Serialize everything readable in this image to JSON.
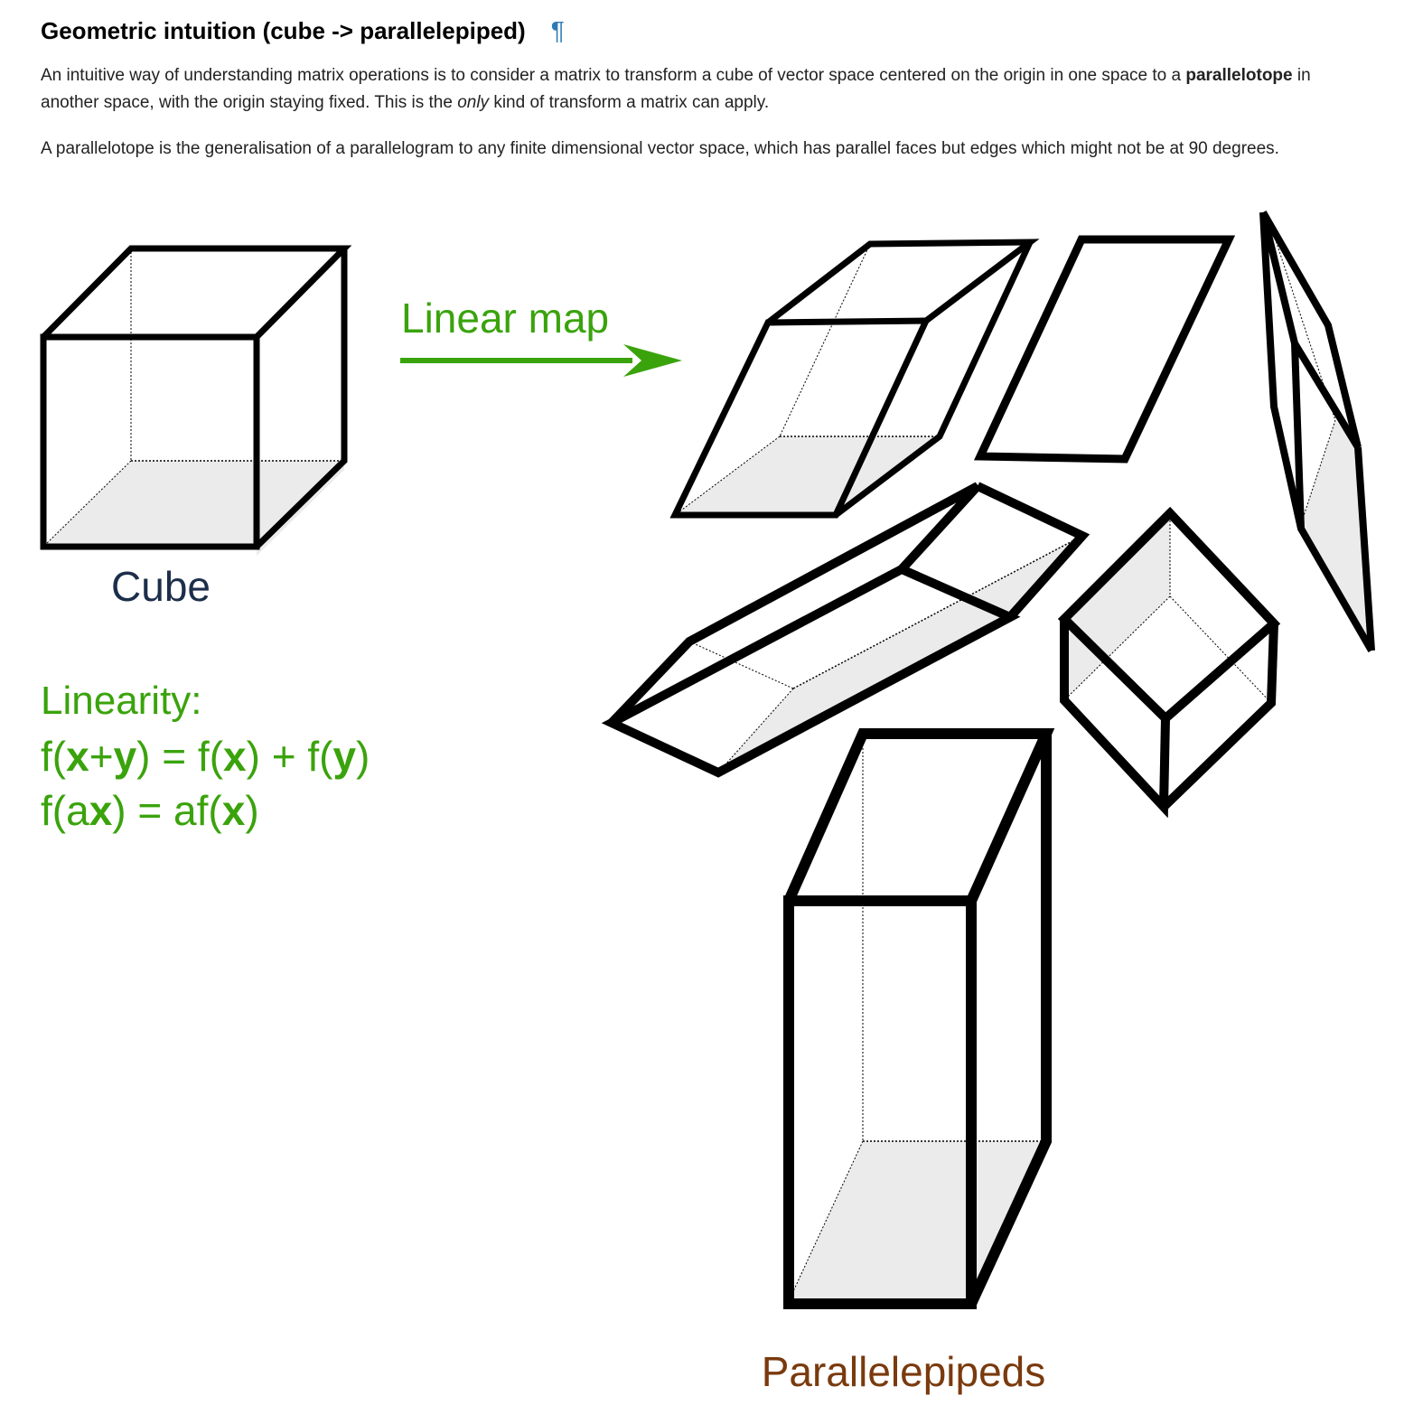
{
  "section": {
    "heading": "Geometric intuition (cube -> parallelepiped)",
    "anchor_symbol": "¶"
  },
  "paragraphs": [
    {
      "parts": [
        {
          "text": "An intuitive way of understanding matrix operations is to consider a matrix to transform a cube of vector space centered on the origin in one space to a ",
          "style": "normal"
        },
        {
          "text": "parallelotope",
          "style": "bold"
        },
        {
          "text": " in another space, with the origin staying fixed. This is the ",
          "style": "normal"
        },
        {
          "text": "only",
          "style": "italic"
        },
        {
          "text": " kind of transform a matrix can apply.",
          "style": "normal"
        }
      ]
    },
    {
      "parts": [
        {
          "text": "A parallelotope is the generalisation of a parallelogram to any finite dimensional vector space, which has parallel faces but edges which might not be at 90 degrees.",
          "style": "normal"
        }
      ]
    }
  ],
  "figure": {
    "cube_label": "Cube",
    "map_label": "Linear map",
    "linearity_title": "Linearity:",
    "formula_1": [
      {
        "t": "f(",
        "b": false
      },
      {
        "t": "x",
        "b": true
      },
      {
        "t": "+",
        "b": false
      },
      {
        "t": "y",
        "b": true
      },
      {
        "t": ") = f(",
        "b": false
      },
      {
        "t": "x",
        "b": true
      },
      {
        "t": ") + f(",
        "b": false
      },
      {
        "t": "y",
        "b": true
      },
      {
        "t": ")",
        "b": false
      }
    ],
    "formula_2": [
      {
        "t": "f(a",
        "b": false
      },
      {
        "t": "x",
        "b": true
      },
      {
        "t": ") = af(",
        "b": false
      },
      {
        "t": "x",
        "b": true
      },
      {
        "t": ")",
        "b": false
      }
    ],
    "result_label": "Parallelepipeds",
    "colors": {
      "green": "#3aa30c",
      "navy": "#1c2e4a",
      "brown": "#7a3a0e",
      "face_shade": "#ebebeb",
      "pilcrow": "#2a7ab8"
    }
  }
}
